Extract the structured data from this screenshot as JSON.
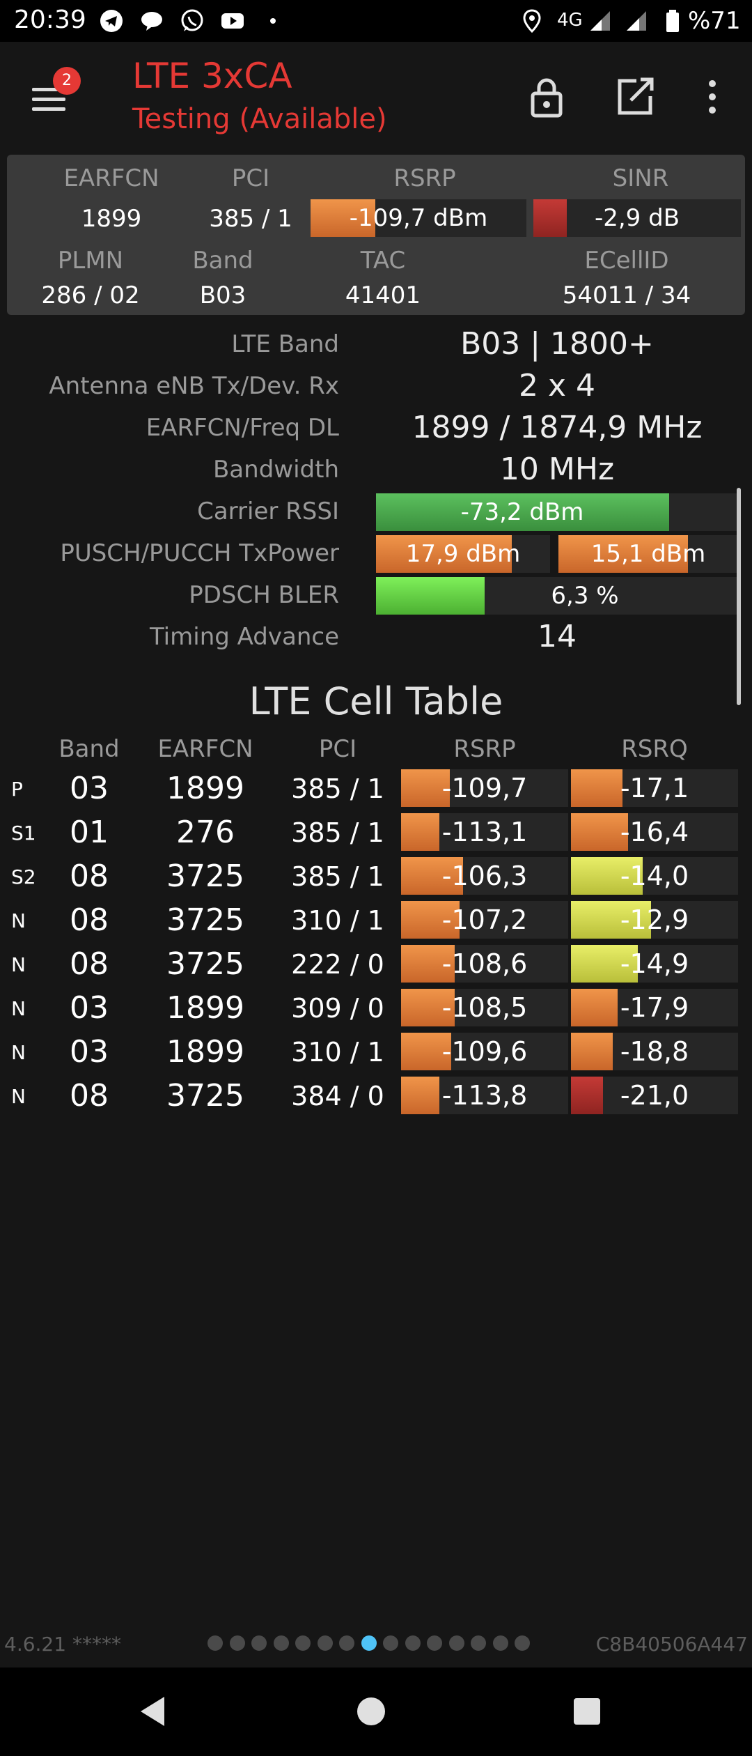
{
  "status_bar": {
    "time": "20:39",
    "notification_icons": [
      "telegram-icon",
      "chat-bubble-icon",
      "whatsapp-icon",
      "youtube-icon",
      "dot-icon"
    ],
    "network": "4G",
    "battery": "%71"
  },
  "app_bar": {
    "menu_badge": "2",
    "title": "LTE 3xCA",
    "subtitle": "Testing (Available)",
    "actions": [
      "lock-icon",
      "open-external-icon",
      "more-vert-icon"
    ],
    "accent": "#e53935"
  },
  "serving": {
    "earfcn_label": "EARFCN",
    "pci_label": "PCI",
    "rsrp_label": "RSRP",
    "sinr_label": "SINR",
    "earfcn": "1899",
    "pci": "385 / 1",
    "rsrp": "-109,7 dBm",
    "rsrp_level": 0.3,
    "sinr": "-2,9 dB",
    "sinr_level": 0.16,
    "plmn_label": "PLMN",
    "band_label": "Band",
    "tac_label": "TAC",
    "ecellid_label": "ECellID",
    "plmn": "286 / 02",
    "band": "B03",
    "tac": "41401",
    "ecellid": "54011 / 34"
  },
  "details": {
    "lte_band_label": "LTE Band",
    "lte_band": "B03 | 1800+",
    "antenna_label": "Antenna eNB Tx/Dev. Rx",
    "antenna": "2 x 4",
    "earfcn_freq_label": "EARFCN/Freq DL",
    "earfcn_freq": "1899 / 1874,9 MHz",
    "bandwidth_label": "Bandwidth",
    "bandwidth": "10 MHz",
    "rssi_label": "Carrier RSSI",
    "rssi": "-73,2 dBm",
    "rssi_level": 0.81,
    "txpower_label": "PUSCH/PUCCH TxPower",
    "pusch": "17,9 dBm",
    "pusch_level": 0.78,
    "pucch": "15,1 dBm",
    "pucch_level": 0.72,
    "bler_label": "PDSCH BLER",
    "bler": "6,3 %",
    "bler_level": 0.3,
    "ta_label": "Timing Advance",
    "ta": "14"
  },
  "cell_table": {
    "title": "LTE Cell Table",
    "headers": {
      "band": "Band",
      "earfcn": "EARFCN",
      "pci": "PCI",
      "rsrp": "RSRP",
      "rsrq": "RSRQ"
    },
    "rows": [
      {
        "type": "P",
        "band": "03",
        "earfcn": "1899",
        "pci": "385 / 1",
        "rsrp": "-109,7",
        "rsrp_level": 0.29,
        "rsrq": "-17,1",
        "rsrq_level": 0.31,
        "rsrq_color": "orange"
      },
      {
        "type": "S1",
        "band": "01",
        "earfcn": "276",
        "pci": "385 / 1",
        "rsrp": "-113,1",
        "rsrp_level": 0.23,
        "rsrq": "-16,4",
        "rsrq_level": 0.34,
        "rsrq_color": "orange"
      },
      {
        "type": "S2",
        "band": "08",
        "earfcn": "3725",
        "pci": "385 / 1",
        "rsrp": "-106,3",
        "rsrp_level": 0.37,
        "rsrq": "-14,0",
        "rsrq_level": 0.43,
        "rsrq_color": "yellow"
      },
      {
        "type": "N",
        "band": "08",
        "earfcn": "3725",
        "pci": "310 / 1",
        "rsrp": "-107,2",
        "rsrp_level": 0.35,
        "rsrq": "-12,9",
        "rsrq_level": 0.48,
        "rsrq_color": "yellow"
      },
      {
        "type": "N",
        "band": "08",
        "earfcn": "3725",
        "pci": "222 / 0",
        "rsrp": "-108,6",
        "rsrp_level": 0.32,
        "rsrq": "-14,9",
        "rsrq_level": 0.4,
        "rsrq_color": "yellow"
      },
      {
        "type": "N",
        "band": "03",
        "earfcn": "1899",
        "pci": "309 / 0",
        "rsrp": "-108,5",
        "rsrp_level": 0.32,
        "rsrq": "-17,9",
        "rsrq_level": 0.28,
        "rsrq_color": "orange"
      },
      {
        "type": "N",
        "band": "03",
        "earfcn": "1899",
        "pci": "310 / 1",
        "rsrp": "-109,6",
        "rsrp_level": 0.3,
        "rsrq": "-18,8",
        "rsrq_level": 0.25,
        "rsrq_color": "orange"
      },
      {
        "type": "N",
        "band": "08",
        "earfcn": "3725",
        "pci": "384 / 0",
        "rsrp": "-113,8",
        "rsrp_level": 0.23,
        "rsrq": "-21,0",
        "rsrq_level": 0.19,
        "rsrq_color": "red"
      }
    ]
  },
  "footer": {
    "version": "4.6.21 *****",
    "device_id": "C8B40506A447",
    "page_count": 15,
    "active_page": 7
  },
  "colors": {
    "orange": "#e0803a",
    "yellow": "#d6dc52",
    "green": "#4caf50",
    "light_green": "#6bdc4a",
    "red": "#b3322f",
    "active_dot": "#4fc3f7"
  }
}
